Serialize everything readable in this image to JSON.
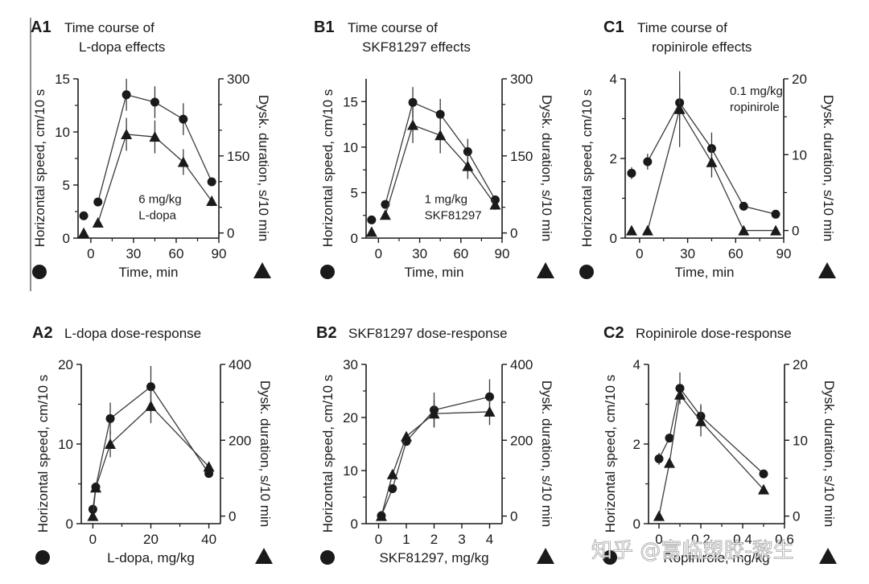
{
  "figure": {
    "watermark": "知乎 @富临塑胶-黎生",
    "left_axis_label": "Horizontal speed, cm/10 s",
    "right_axis_label": "Dysk. duration, s/10 min",
    "colors": {
      "ink": "#1a1a1a",
      "line": "#3a3a3a"
    }
  },
  "chart_data": [
    {
      "id": "A1",
      "type": "line",
      "panel_label": "A1",
      "title": [
        "Time course of",
        "L-dopa effects"
      ],
      "xlabel": "Time, min",
      "ylabel": "Horizontal speed, cm/10 s",
      "y2label": "Dysk. duration, s/10 min",
      "xlim": [
        -9,
        90
      ],
      "xticks": [
        0,
        30,
        60,
        90
      ],
      "xminor": [
        15,
        45,
        75
      ],
      "ylim": [
        0,
        15
      ],
      "yticks": [
        0,
        5,
        10,
        15
      ],
      "yminor": [
        2.5,
        7.5,
        12.5
      ],
      "y2lim": [
        -10,
        300
      ],
      "y2ticks": [
        0,
        150,
        300
      ],
      "y2minor": [
        50,
        100,
        200,
        250
      ],
      "annotation": [
        "6 mg/kg",
        "L-dopa"
      ],
      "annotation_pos": [
        0.43,
        0.78
      ],
      "x": [
        -5,
        5,
        25,
        45,
        65,
        85
      ],
      "series": [
        {
          "name": "Horizontal speed",
          "marker": "circle",
          "axis": "left",
          "values": [
            2.1,
            3.4,
            13.5,
            12.8,
            11.2,
            5.3
          ],
          "err": [
            0,
            0,
            1.5,
            1.5,
            1.5,
            0
          ],
          "connect_from": 1
        },
        {
          "name": "Dysk. duration",
          "marker": "triangle",
          "axis": "right",
          "values": [
            0,
            20,
            192,
            187,
            138,
            62
          ],
          "err": [
            0,
            0,
            32,
            32,
            25,
            10
          ],
          "connect_from": 1
        }
      ]
    },
    {
      "id": "B1",
      "type": "line",
      "panel_label": "B1",
      "title": [
        "Time course of",
        "SKF81297 effects"
      ],
      "xlabel": "Time, min",
      "ylabel": "Horizontal speed, cm/10 s",
      "y2label": "Dysk. duration, s/10 min",
      "xlim": [
        -9,
        90
      ],
      "xticks": [
        0,
        30,
        60,
        90
      ],
      "xminor": [
        15,
        45,
        75
      ],
      "ylim": [
        0,
        17.5
      ],
      "yticks": [
        0,
        5,
        10,
        15
      ],
      "yminor": [
        2.5,
        7.5,
        12.5
      ],
      "y2lim": [
        -10,
        300
      ],
      "y2ticks": [
        0,
        150,
        300
      ],
      "y2minor": [
        50,
        100,
        200,
        250
      ],
      "annotation": [
        "1 mg/kg",
        "SKF81297"
      ],
      "annotation_pos": [
        0.43,
        0.78
      ],
      "x": [
        -5,
        5,
        25,
        45,
        65,
        85
      ],
      "series": [
        {
          "name": "Horizontal speed",
          "marker": "circle",
          "axis": "left",
          "values": [
            2.0,
            3.7,
            14.9,
            13.6,
            9.5,
            4.2
          ],
          "err": [
            0,
            0,
            1.7,
            1.7,
            1.4,
            0.5
          ],
          "connect_from": 1
        },
        {
          "name": "Dysk. duration",
          "marker": "triangle",
          "axis": "right",
          "values": [
            2,
            35,
            210,
            190,
            130,
            55
          ],
          "err": [
            0,
            0,
            35,
            35,
            25,
            10
          ],
          "connect_from": 1
        }
      ]
    },
    {
      "id": "C1",
      "type": "line",
      "panel_label": "C1",
      "title": [
        "Time course of",
        "ropinirole effects"
      ],
      "xlabel": "Time, min",
      "ylabel": "Horizontal speed, cm/10 s",
      "y2label": "Dysk. duration, s/10 min",
      "xlim": [
        -9,
        90
      ],
      "xticks": [
        0,
        30,
        60,
        90
      ],
      "xminor": [
        15,
        45,
        75
      ],
      "ylim": [
        0,
        4
      ],
      "yticks": [
        0,
        2,
        4
      ],
      "yminor": [
        1,
        3
      ],
      "y2lim": [
        -1,
        20
      ],
      "y2ticks": [
        0,
        10,
        20
      ],
      "y2minor": [
        5,
        15
      ],
      "annotation": [
        "0.1 mg/kg",
        "ropinirole"
      ],
      "annotation_pos": [
        0.66,
        0.1
      ],
      "x": [
        -5,
        5,
        25,
        45,
        65,
        85
      ],
      "series": [
        {
          "name": "Horizontal speed",
          "marker": "circle",
          "axis": "left",
          "values": [
            1.63,
            1.92,
            3.4,
            2.25,
            0.8,
            0.6
          ],
          "err": [
            0.15,
            0.2,
            0.45,
            0.4,
            0,
            0
          ],
          "connect_from": 1
        },
        {
          "name": "Dysk. duration",
          "marker": "triangle",
          "axis": "right",
          "values": [
            0,
            0,
            16,
            9,
            0,
            0
          ],
          "err": [
            0,
            0,
            5,
            2,
            0,
            0
          ],
          "connect_from": 1
        }
      ]
    },
    {
      "id": "A2",
      "type": "line",
      "panel_label": "A2",
      "title": [
        "L-dopa dose-response"
      ],
      "xlabel": "L-dopa, mg/kg",
      "ylabel": "Horizontal speed, cm/10 s",
      "y2label": "Dysk. duration, s/10 min",
      "xlim": [
        -4,
        44
      ],
      "xticks": [
        0,
        20,
        40
      ],
      "xminor": [
        10,
        30
      ],
      "ylim": [
        0,
        20
      ],
      "yticks": [
        0,
        10,
        20
      ],
      "yminor": [
        5,
        15
      ],
      "y2lim": [
        -20,
        400
      ],
      "y2ticks": [
        0,
        200,
        400
      ],
      "y2minor": [
        100,
        300
      ],
      "annotation": [],
      "annotation_pos": [
        0,
        0
      ],
      "x": [
        0,
        1,
        6,
        20,
        40
      ],
      "series": [
        {
          "name": "Horizontal speed",
          "marker": "circle",
          "axis": "left",
          "values": [
            1.8,
            4.6,
            13.2,
            17.2,
            6.3
          ],
          "err": [
            0,
            0,
            2,
            2.6,
            0
          ],
          "connect_from": 0
        },
        {
          "name": "Dysk. duration",
          "marker": "triangle",
          "axis": "right",
          "values": [
            0,
            75,
            190,
            290,
            130
          ],
          "err": [
            0,
            0,
            35,
            45,
            0
          ],
          "connect_from": 0
        }
      ]
    },
    {
      "id": "B2",
      "type": "line",
      "panel_label": "B2",
      "title": [
        "SKF81297 dose-response"
      ],
      "xlabel": "SKF81297, mg/kg",
      "ylabel": "Horizontal speed, cm/10 s",
      "y2label": "Dysk. duration, s/10 min",
      "xlim": [
        -0.45,
        4.45
      ],
      "xticks": [
        0,
        1,
        2,
        3,
        4
      ],
      "xminor": [],
      "ylim": [
        0,
        30
      ],
      "yticks": [
        0,
        10,
        20,
        30
      ],
      "yminor": [
        5,
        15,
        25
      ],
      "y2lim": [
        -20,
        400
      ],
      "y2ticks": [
        0,
        200,
        400
      ],
      "y2minor": [
        100,
        300
      ],
      "annotation": [],
      "annotation_pos": [
        0,
        0
      ],
      "x": [
        0.1,
        0.5,
        1,
        2,
        4
      ],
      "series": [
        {
          "name": "Horizontal speed",
          "marker": "circle",
          "axis": "left",
          "values": [
            1.5,
            6.6,
            15.5,
            21.4,
            23.9
          ],
          "err": [
            0,
            0,
            0,
            3.3,
            3.3
          ],
          "connect_from": 0
        },
        {
          "name": "Dysk. duration",
          "marker": "triangle",
          "axis": "right",
          "values": [
            0,
            110,
            210,
            270,
            275
          ],
          "err": [
            0,
            0,
            0,
            35,
            35
          ],
          "connect_from": 0
        }
      ]
    },
    {
      "id": "C2",
      "type": "line",
      "panel_label": "C2",
      "title": [
        "Ropinirole dose-response"
      ],
      "xlabel": "Ropinirole, mg/kg",
      "ylabel": "Horizontal speed, cm/10 s",
      "y2label": "Dysk. duration, s/10 min",
      "xlim": [
        -0.05,
        0.6
      ],
      "xticks": [
        0,
        0.2,
        0.4,
        0.6
      ],
      "xminor": [
        0.1,
        0.3,
        0.5
      ],
      "xticklabels": [
        "0",
        "0.2",
        "0.4",
        "0.6"
      ],
      "ylim": [
        0,
        4
      ],
      "yticks": [
        0,
        2,
        4
      ],
      "yminor": [
        1,
        3
      ],
      "y2lim": [
        -1,
        20
      ],
      "y2ticks": [
        0,
        10,
        20
      ],
      "y2minor": [
        5,
        15
      ],
      "annotation": [],
      "annotation_pos": [
        0,
        0
      ],
      "x": [
        0,
        0.05,
        0.1,
        0.2,
        0.5
      ],
      "series": [
        {
          "name": "Horizontal speed",
          "marker": "circle",
          "axis": "left",
          "values": [
            1.63,
            2.15,
            3.4,
            2.7,
            1.25
          ],
          "err": [
            0.15,
            0,
            0.4,
            0.3,
            0
          ],
          "connect_from": 0
        },
        {
          "name": "Dysk. duration",
          "marker": "triangle",
          "axis": "right",
          "values": [
            0,
            7,
            16,
            12.5,
            3.5
          ],
          "err": [
            0,
            0,
            0,
            2,
            0
          ],
          "connect_from": 0
        }
      ]
    }
  ]
}
